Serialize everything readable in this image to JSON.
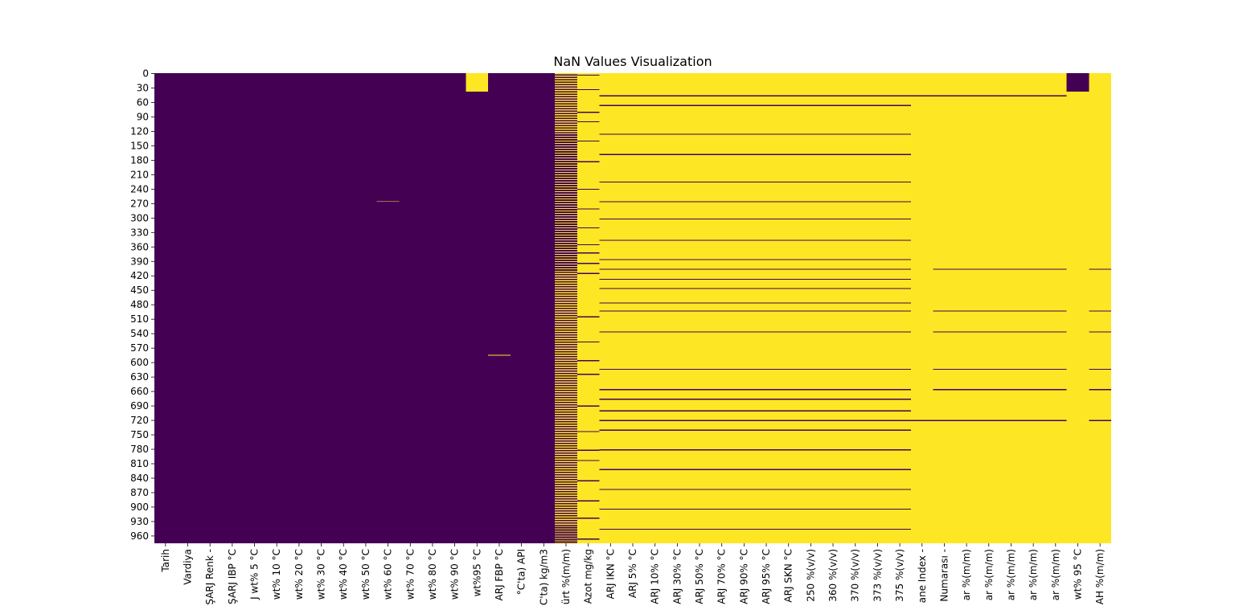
{
  "chart_data": {
    "type": "heatmap",
    "title": "NaN Values Visualization",
    "xlabel": "",
    "ylabel": "",
    "colors": {
      "present": "#440154",
      "missing": "#fde725"
    },
    "row_count": 976,
    "y_tick_labels": [
      "0",
      "30",
      "60",
      "90",
      "120",
      "150",
      "180",
      "210",
      "240",
      "270",
      "300",
      "330",
      "360",
      "390",
      "420",
      "450",
      "480",
      "510",
      "540",
      "570",
      "600",
      "630",
      "660",
      "690",
      "720",
      "750",
      "780",
      "810",
      "840",
      "870",
      "900",
      "930",
      "960"
    ],
    "columns": [
      {
        "label": "Tarih",
        "missing_ranges": []
      },
      {
        "label": "Vardiya",
        "missing_ranges": []
      },
      {
        "label": "ŞARJ Renk -",
        "missing_ranges": []
      },
      {
        "label": "ŞARJ IBP °C",
        "missing_ranges": []
      },
      {
        "label": "J wt% 5 °C",
        "missing_ranges": []
      },
      {
        "label": "wt% 10 °C",
        "missing_ranges": []
      },
      {
        "label": "wt% 20 °C",
        "missing_ranges": []
      },
      {
        "label": "wt% 30 °C",
        "missing_ranges": []
      },
      {
        "label": "wt% 40 °C",
        "missing_ranges": []
      },
      {
        "label": "wt% 50 °C",
        "missing_ranges": []
      },
      {
        "label": "wt% 60 °C",
        "missing_ranges": [
          [
            266,
            267
          ]
        ]
      },
      {
        "label": "wt% 70 °C",
        "missing_ranges": []
      },
      {
        "label": "wt% 80 °C",
        "missing_ranges": []
      },
      {
        "label": "wt% 90 °C",
        "missing_ranges": []
      },
      {
        "label": "wt%95 °C",
        "missing_ranges": [
          [
            0,
            38
          ]
        ]
      },
      {
        "label": "ARJ FBP °C",
        "missing_ranges": [
          [
            585,
            586
          ]
        ]
      },
      {
        "label": "°C'ta) API",
        "missing_ranges": []
      },
      {
        "label": "C'ta) kg/m3",
        "missing_ranges": []
      },
      {
        "label": "ürt %(m/m)",
        "pattern": "alternating"
      },
      {
        "label": "Azot mg/kg",
        "pattern": "mostly_missing"
      },
      {
        "label": "ARJ IKN °C",
        "pattern": "group_a"
      },
      {
        "label": "ARJ 5% °C",
        "pattern": "group_a"
      },
      {
        "label": "ARJ 10% °C",
        "pattern": "group_a"
      },
      {
        "label": "ARJ 30% °C",
        "pattern": "group_a"
      },
      {
        "label": "ARJ 50% °C",
        "pattern": "group_a"
      },
      {
        "label": "ARJ 70% °C",
        "pattern": "group_a"
      },
      {
        "label": "ARJ 90% °C",
        "pattern": "group_a"
      },
      {
        "label": "ARJ 95% °C",
        "pattern": "group_a"
      },
      {
        "label": "ARJ SKN °C",
        "pattern": "group_a"
      },
      {
        "label": "250 %(v/v)",
        "pattern": "group_a"
      },
      {
        "label": "360 %(v/v)",
        "pattern": "group_a"
      },
      {
        "label": "370 %(v/v)",
        "pattern": "group_a"
      },
      {
        "label": "373 %(v/v)",
        "pattern": "group_a"
      },
      {
        "label": "375 %(v/v)",
        "pattern": "group_a"
      },
      {
        "label": "ane Index -",
        "pattern": "group_b"
      },
      {
        "label": "Numarası -",
        "pattern": "group_c"
      },
      {
        "label": "ar %(m/m)",
        "pattern": "group_c"
      },
      {
        "label": "ar %(m/m)",
        "pattern": "group_c"
      },
      {
        "label": "ar %(m/m)",
        "pattern": "group_c"
      },
      {
        "label": "ar %(m/m)",
        "pattern": "group_c"
      },
      {
        "label": "ar %(m/m)",
        "pattern": "group_c"
      },
      {
        "label": "wt% 95 °C",
        "pattern": "first_rows_present"
      },
      {
        "label": "AH %(m/m)",
        "pattern": "group_d"
      }
    ],
    "row_patterns": {
      "group_a_present_rows": [
        46,
        66,
        126,
        168,
        225,
        266,
        302,
        346,
        386,
        406,
        427,
        446,
        476,
        493,
        536,
        614,
        656,
        676,
        700,
        720,
        740,
        781,
        822,
        863,
        904,
        946
      ],
      "group_b_present_rows": [
        46,
        720
      ],
      "group_c_present_rows": [
        46,
        406,
        493,
        536,
        614,
        656,
        720
      ],
      "group_d_present_rows": [
        406,
        493,
        536,
        614,
        656,
        720
      ],
      "first_rows_present_end": 38,
      "azot_present_rows": [
        3,
        33,
        80,
        100,
        140,
        183,
        240,
        281,
        320,
        355,
        372,
        394,
        415,
        505,
        557,
        596,
        624,
        690,
        743,
        782,
        803,
        845,
        887,
        923,
        966
      ]
    }
  }
}
